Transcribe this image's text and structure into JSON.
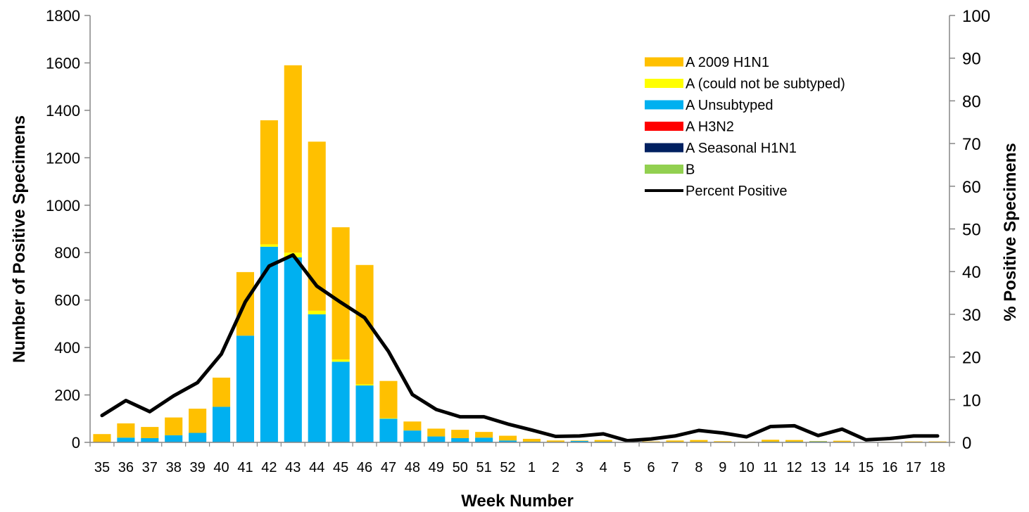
{
  "chart_data": {
    "type": "bar",
    "stacked": true,
    "xlabel": "Week Number",
    "ylabel": "Number of Positive Specimens",
    "y2label": "% Positive Specimens",
    "ylim": [
      0,
      1800
    ],
    "y2lim": [
      0,
      100
    ],
    "yticks": [
      0,
      200,
      400,
      600,
      800,
      1000,
      1200,
      1400,
      1600,
      1800
    ],
    "y2ticks": [
      0,
      10,
      20,
      30,
      40,
      50,
      60,
      70,
      80,
      90,
      100
    ],
    "legend_position": "top-right",
    "categories": [
      "35",
      "36",
      "37",
      "38",
      "39",
      "40",
      "41",
      "42",
      "43",
      "44",
      "45",
      "46",
      "47",
      "48",
      "49",
      "50",
      "51",
      "52",
      "1",
      "2",
      "3",
      "4",
      "5",
      "6",
      "7",
      "8",
      "9",
      "10",
      "11",
      "12",
      "13",
      "14",
      "15",
      "16",
      "17",
      "18"
    ],
    "series": [
      {
        "name": "A Unsubtyped",
        "color": "#00B0F0",
        "values": [
          0,
          20,
          18,
          30,
          40,
          150,
          450,
          825,
          780,
          540,
          340,
          240,
          100,
          50,
          25,
          18,
          20,
          8,
          3,
          2,
          6,
          3,
          0,
          1,
          2,
          2,
          1,
          2,
          3,
          3,
          4,
          2,
          0,
          0,
          1,
          1
        ]
      },
      {
        "name": "A (could not be subtyped)",
        "color": "#FFFF00",
        "values": [
          0,
          0,
          0,
          0,
          0,
          0,
          0,
          10,
          20,
          15,
          10,
          5,
          2,
          0,
          0,
          0,
          0,
          0,
          0,
          0,
          0,
          0,
          0,
          0,
          0,
          0,
          0,
          0,
          0,
          0,
          0,
          0,
          0,
          0,
          0,
          0
        ]
      },
      {
        "name": "A 2009 H1N1",
        "color": "#FFC000",
        "values": [
          35,
          60,
          47,
          75,
          102,
          123,
          268,
          523,
          790,
          713,
          557,
          503,
          157,
          38,
          33,
          35,
          24,
          20,
          12,
          6,
          2,
          7,
          0,
          3,
          6,
          8,
          4,
          1,
          8,
          7,
          2,
          5,
          1,
          2,
          3,
          3
        ]
      },
      {
        "name": "A H3N2",
        "color": "#FF0000",
        "values": [
          0,
          0,
          0,
          0,
          0,
          0,
          0,
          0,
          0,
          0,
          0,
          0,
          0,
          0,
          0,
          0,
          0,
          0,
          0,
          0,
          0,
          0,
          0,
          0,
          0,
          0,
          0,
          0,
          0,
          0,
          0,
          0,
          0,
          0,
          0,
          0
        ]
      },
      {
        "name": "A Seasonal H1N1",
        "color": "#002060",
        "values": [
          0,
          0,
          0,
          0,
          0,
          0,
          0,
          0,
          0,
          0,
          0,
          0,
          0,
          0,
          0,
          0,
          0,
          0,
          0,
          0,
          0,
          0,
          0,
          0,
          0,
          0,
          0,
          0,
          0,
          0,
          0,
          0,
          0,
          0,
          0,
          0
        ]
      },
      {
        "name": "B",
        "color": "#92D050",
        "values": [
          0,
          0,
          0,
          0,
          0,
          0,
          0,
          0,
          0,
          0,
          0,
          0,
          0,
          0,
          0,
          0,
          0,
          0,
          0,
          0,
          0,
          0,
          0,
          0,
          0,
          0,
          0,
          0,
          0,
          0,
          0,
          0,
          0,
          0,
          0,
          0
        ]
      }
    ],
    "legend_order": [
      "A 2009 H1N1",
      "A (could not be subtyped)",
      "A Unsubtyped",
      "A H3N2",
      "A Seasonal H1N1",
      "B"
    ],
    "line": {
      "name": "Percent Positive",
      "color": "#000000",
      "axis": "right",
      "values": [
        6.3,
        9.8,
        7.2,
        10.9,
        14,
        20.7,
        32.9,
        41.3,
        43.9,
        36.6,
        32.8,
        29.2,
        21.3,
        11.2,
        7.7,
        6,
        6,
        4.3,
        2.9,
        1.4,
        1.5,
        2,
        0.4,
        0.8,
        1.5,
        2.8,
        2.2,
        1.3,
        3.7,
        3.9,
        1.6,
        3.1,
        0.6,
        0.9,
        1.5,
        1.5
      ]
    }
  }
}
